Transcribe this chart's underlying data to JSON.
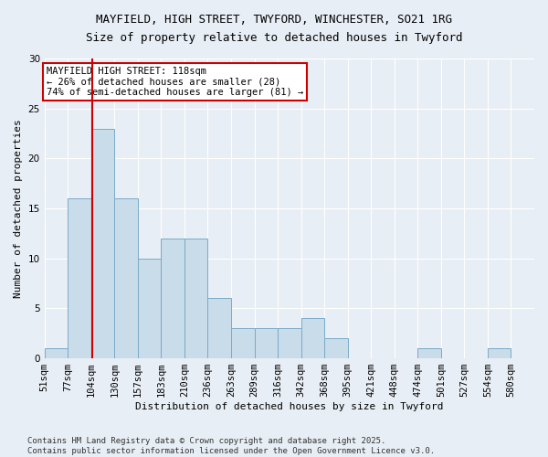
{
  "title_line1": "MAYFIELD, HIGH STREET, TWYFORD, WINCHESTER, SO21 1RG",
  "title_line2": "Size of property relative to detached houses in Twyford",
  "xlabel": "Distribution of detached houses by size in Twyford",
  "ylabel": "Number of detached properties",
  "bar_color": "#c9dcea",
  "bar_edge_color": "#7aaac8",
  "background_color": "#e8eef5",
  "grid_color": "#ffffff",
  "vline_color": "#cc0000",
  "vline_bar_index": 2,
  "categories": [
    "51sqm",
    "77sqm",
    "104sqm",
    "130sqm",
    "157sqm",
    "183sqm",
    "210sqm",
    "236sqm",
    "263sqm",
    "289sqm",
    "316sqm",
    "342sqm",
    "368sqm",
    "395sqm",
    "421sqm",
    "448sqm",
    "474sqm",
    "501sqm",
    "527sqm",
    "554sqm",
    "580sqm"
  ],
  "values": [
    1,
    16,
    23,
    16,
    10,
    12,
    12,
    6,
    3,
    3,
    3,
    4,
    2,
    0,
    0,
    0,
    1,
    0,
    0,
    1,
    0
  ],
  "ylim": [
    0,
    30
  ],
  "yticks": [
    0,
    5,
    10,
    15,
    20,
    25,
    30
  ],
  "annotation_text": "MAYFIELD HIGH STREET: 118sqm\n← 26% of detached houses are smaller (28)\n74% of semi-detached houses are larger (81) →",
  "annotation_box_color": "#ffffff",
  "annotation_border_color": "#cc0000",
  "footer_text": "Contains HM Land Registry data © Crown copyright and database right 2025.\nContains public sector information licensed under the Open Government Licence v3.0.",
  "title_fontsize": 9,
  "axis_label_fontsize": 8,
  "tick_fontsize": 7.5,
  "annotation_fontsize": 7.5,
  "footer_fontsize": 6.5
}
